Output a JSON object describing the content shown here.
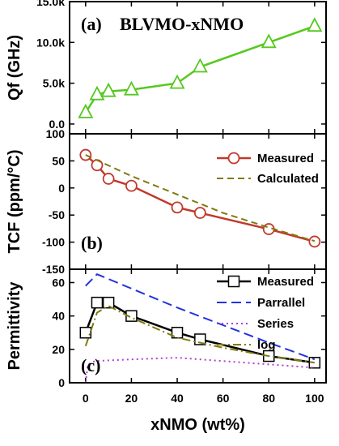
{
  "x_axis": {
    "label": "xNMO (wt%)",
    "ticks": [
      "0",
      "20",
      "40",
      "60",
      "80",
      "100"
    ]
  },
  "chart_data": [
    {
      "type": "line",
      "panel_label": "(a)",
      "title": "BLVMO-xNMO",
      "ylabel": "Qf (GHz)",
      "xlim": [
        -7,
        105
      ],
      "ylim": [
        -1200,
        15000
      ],
      "y_ticks": [
        "15.0k",
        "10.0k",
        "5.0k",
        "0.0"
      ],
      "y_tick_values": [
        15000,
        10000,
        5000,
        0
      ],
      "series": [
        {
          "color": "#55c81e",
          "marker": "triangle",
          "x": [
            0,
            5,
            10,
            20,
            40,
            50,
            80,
            100
          ],
          "y": [
            1400,
            3600,
            4000,
            4200,
            5000,
            7000,
            10000,
            12000
          ]
        }
      ]
    },
    {
      "type": "line",
      "panel_label": "(b)",
      "ylabel": "TCF (ppm/°C)",
      "xlim": [
        -7,
        105
      ],
      "ylim": [
        -150,
        100
      ],
      "y_ticks": [
        "100",
        "50",
        "0",
        "-50",
        "-100",
        "-150"
      ],
      "y_tick_values": [
        100,
        50,
        0,
        -50,
        -100,
        -150
      ],
      "legend_position": "top-right",
      "series": [
        {
          "name": "Measured",
          "color": "#c0392b",
          "marker": "circle",
          "x": [
            0,
            5,
            10,
            20,
            40,
            50,
            80,
            100
          ],
          "y": [
            61,
            42,
            17,
            4,
            -36,
            -46,
            -76,
            -99
          ]
        },
        {
          "name": "Calculated",
          "color": "#7f7a0f",
          "dash": "8,5",
          "x": [
            0,
            20,
            40,
            60,
            80,
            100
          ],
          "y": [
            61,
            22,
            -12,
            -46,
            -73,
            -98
          ]
        }
      ]
    },
    {
      "type": "line",
      "panel_label": "(c)",
      "ylabel": "Permittivity",
      "xlim": [
        -7,
        105
      ],
      "ylim": [
        0,
        68
      ],
      "y_ticks": [
        "60",
        "40",
        "20",
        "0"
      ],
      "y_tick_values": [
        60,
        40,
        20,
        0
      ],
      "legend_position": "top-right",
      "series": [
        {
          "name": "Measured",
          "color": "#000000",
          "marker": "square",
          "x": [
            0,
            5,
            10,
            20,
            40,
            50,
            80,
            100
          ],
          "y": [
            30,
            48,
            48,
            40,
            30,
            26,
            16,
            12
          ]
        },
        {
          "name": "Parrallel",
          "color": "#2233dd",
          "dash": "12,6",
          "x": [
            0,
            5,
            40,
            80,
            100
          ],
          "y": [
            58,
            65,
            45,
            24,
            14
          ]
        },
        {
          "name": "Series",
          "color": "#b33dd9",
          "dash": "2,4",
          "x": [
            0,
            1,
            4,
            20,
            40,
            80,
            100
          ],
          "y": [
            0,
            11,
            13,
            14,
            15,
            11,
            9
          ]
        },
        {
          "name": "log",
          "color": "#7f7a0f",
          "dash": "10,4,2,4",
          "x": [
            0,
            5,
            10,
            20,
            40,
            60,
            80,
            100
          ],
          "y": [
            22,
            42,
            46,
            39,
            27,
            21,
            16,
            12
          ]
        }
      ]
    }
  ]
}
